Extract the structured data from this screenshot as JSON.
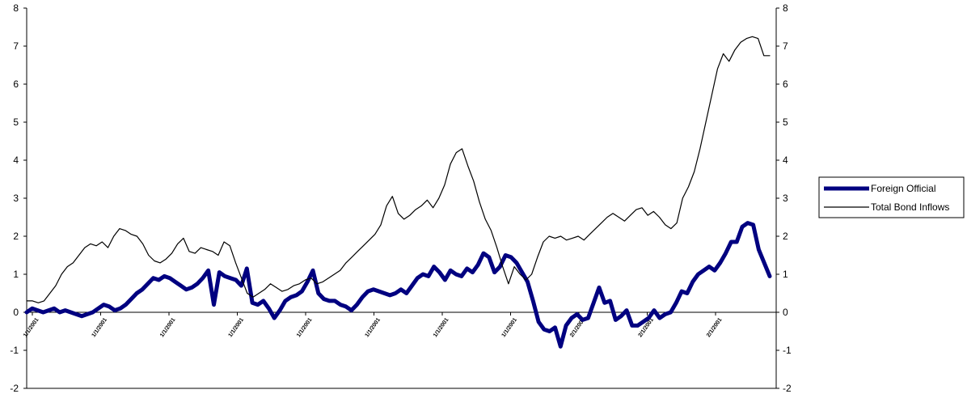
{
  "chart_data": {
    "type": "line",
    "title": "",
    "xlabel": "",
    "ylabel": "",
    "ylim": [
      -2,
      8
    ],
    "y_ticks": [
      "-2",
      "-1",
      "0",
      "1",
      "2",
      "3",
      "4",
      "5",
      "6",
      "7",
      "8"
    ],
    "secondary_y_ticks": [
      "-2",
      "-1",
      "0",
      "1",
      "2",
      "3",
      "4",
      "5",
      "6",
      "7",
      "8"
    ],
    "x_tick_labels": [
      "1/1/2001",
      "1/1/2001",
      "1/1/2001",
      "1/1/2001",
      "1/1/2001",
      "1/1/2001",
      "1/1/2001",
      "1/1/2001",
      "2/1/2001",
      "2/1/2001",
      "2/1/2001"
    ],
    "grid": false,
    "legend": "right",
    "series": [
      {
        "name": "Foreign Official",
        "color": "#000080",
        "values": [
          0.0,
          0.1,
          0.05,
          0.0,
          0.05,
          0.1,
          0.0,
          0.05,
          0.0,
          -0.05,
          -0.1,
          -0.05,
          0.0,
          0.1,
          0.2,
          0.15,
          0.05,
          0.1,
          0.2,
          0.35,
          0.5,
          0.6,
          0.75,
          0.9,
          0.85,
          0.95,
          0.9,
          0.8,
          0.7,
          0.6,
          0.65,
          0.75,
          0.9,
          1.1,
          0.2,
          1.05,
          0.95,
          0.9,
          0.85,
          0.7,
          1.15,
          0.25,
          0.2,
          0.3,
          0.1,
          -0.15,
          0.05,
          0.3,
          0.4,
          0.45,
          0.55,
          0.8,
          1.1,
          0.5,
          0.35,
          0.3,
          0.3,
          0.2,
          0.15,
          0.05,
          0.2,
          0.4,
          0.55,
          0.6,
          0.55,
          0.5,
          0.45,
          0.5,
          0.6,
          0.5,
          0.7,
          0.9,
          1.0,
          0.95,
          1.2,
          1.05,
          0.85,
          1.1,
          1.0,
          0.95,
          1.15,
          1.05,
          1.25,
          1.55,
          1.45,
          1.05,
          1.2,
          1.5,
          1.45,
          1.3,
          1.05,
          0.8,
          0.3,
          -0.25,
          -0.45,
          -0.5,
          -0.4,
          -0.9,
          -0.35,
          -0.15,
          -0.05,
          -0.2,
          -0.15,
          0.25,
          0.65,
          0.25,
          0.3,
          -0.2,
          -0.1,
          0.05,
          -0.35,
          -0.35,
          -0.25,
          -0.15,
          0.05,
          -0.15,
          -0.05,
          0.0,
          0.25,
          0.55,
          0.5,
          0.8,
          1.0,
          1.1,
          1.2,
          1.1,
          1.3,
          1.55,
          1.85,
          1.85,
          2.25,
          2.35,
          2.3,
          1.65,
          1.3,
          0.95
        ]
      },
      {
        "name": "Total Bond Inflows",
        "color": "#000000",
        "values": [
          0.3,
          0.3,
          0.25,
          0.3,
          0.5,
          0.7,
          1.0,
          1.2,
          1.3,
          1.5,
          1.7,
          1.8,
          1.75,
          1.85,
          1.7,
          2.0,
          2.2,
          2.15,
          2.05,
          2.0,
          1.8,
          1.5,
          1.35,
          1.3,
          1.4,
          1.55,
          1.8,
          1.95,
          1.6,
          1.55,
          1.7,
          1.65,
          1.6,
          1.5,
          1.85,
          1.75,
          1.3,
          0.9,
          0.5,
          0.4,
          0.5,
          0.6,
          0.75,
          0.65,
          0.55,
          0.6,
          0.7,
          0.75,
          0.85,
          0.9,
          0.75,
          0.8,
          0.9,
          1.0,
          1.1,
          1.3,
          1.45,
          1.6,
          1.75,
          1.9,
          2.05,
          2.3,
          2.8,
          3.05,
          2.6,
          2.45,
          2.55,
          2.7,
          2.8,
          2.95,
          2.75,
          3.0,
          3.35,
          3.9,
          4.2,
          4.3,
          3.85,
          3.45,
          2.9,
          2.45,
          2.15,
          1.7,
          1.2,
          0.75,
          1.2,
          1.0,
          0.85,
          1.0,
          1.45,
          1.85,
          2.0,
          1.95,
          2.0,
          1.9,
          1.95,
          2.0,
          1.9,
          2.05,
          2.2,
          2.35,
          2.5,
          2.6,
          2.5,
          2.4,
          2.55,
          2.7,
          2.75,
          2.55,
          2.65,
          2.5,
          2.3,
          2.2,
          2.35,
          3.0,
          3.3,
          3.7,
          4.3,
          5.0,
          5.7,
          6.4,
          6.8,
          6.6,
          6.9,
          7.1,
          7.2,
          7.25,
          7.2,
          6.75,
          6.75
        ]
      }
    ]
  }
}
